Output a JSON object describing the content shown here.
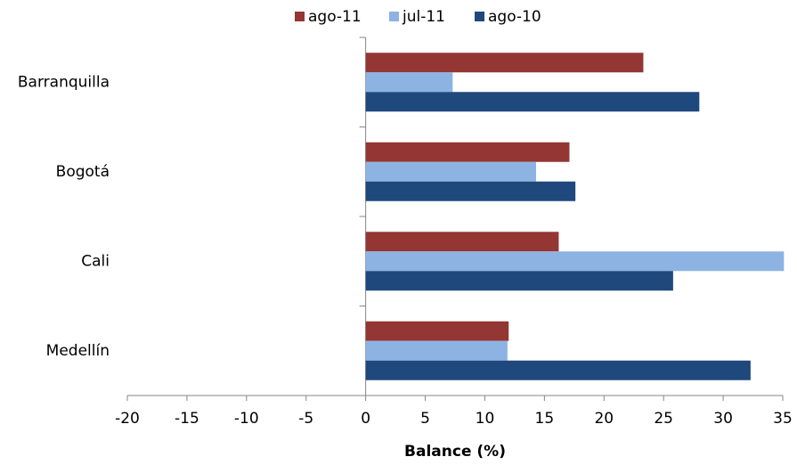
{
  "chart_data": {
    "type": "hbar",
    "categories": [
      "Barranquilla",
      "Bogotá",
      "Cali",
      "Medellín"
    ],
    "series": [
      {
        "name": "ago-11",
        "color": "#943634",
        "values": [
          23.3,
          17.1,
          16.2,
          12.0
        ]
      },
      {
        "name": "jul-11",
        "color": "#8db3e2",
        "values": [
          7.3,
          14.3,
          35.1,
          11.9
        ]
      },
      {
        "name": "ago-10",
        "color": "#1f497d",
        "values": [
          28.0,
          17.6,
          25.8,
          32.3
        ]
      }
    ],
    "x_label": "Balance (%)",
    "xlim": [
      -20,
      35
    ],
    "xticks": [
      -20,
      -15,
      -10,
      -5,
      0,
      5,
      10,
      15,
      20,
      25,
      30,
      35
    ],
    "legend": "top"
  }
}
